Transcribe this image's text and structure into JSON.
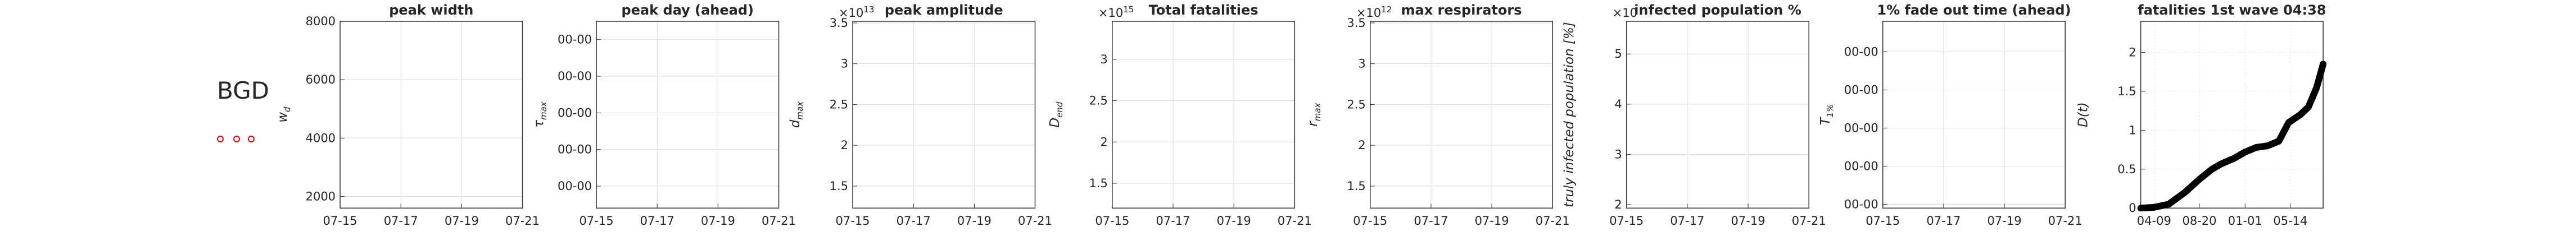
{
  "label": "BGD",
  "chart_data": [
    {
      "type": "line",
      "title": "peak width",
      "ylabel": "w",
      "ylabel_sub": "d",
      "series": [],
      "xlim": [
        0,
        6
      ],
      "xticks": [
        {
          "value": 0,
          "label": "07-15"
        },
        {
          "value": 2,
          "label": "07-17"
        },
        {
          "value": 4,
          "label": "07-19"
        },
        {
          "value": 6,
          "label": "07-21"
        }
      ],
      "ylim": [
        1600,
        8000
      ],
      "yticks": [
        2000,
        4000,
        6000,
        8000
      ],
      "grid": true
    },
    {
      "type": "line",
      "title": "peak day (ahead)",
      "ylabel": "τ",
      "ylabel_sub": "max",
      "series": [],
      "xlim": [
        0,
        6
      ],
      "xticks": [
        {
          "value": 0,
          "label": "07-15"
        },
        {
          "value": 2,
          "label": "07-17"
        },
        {
          "value": 4,
          "label": "07-19"
        },
        {
          "value": 6,
          "label": "07-21"
        }
      ],
      "ylim": [
        -0.6,
        4.5
      ],
      "yticks": [
        {
          "value": 0,
          "label": "00-00"
        },
        {
          "value": 1,
          "label": "00-00"
        },
        {
          "value": 2,
          "label": "00-00"
        },
        {
          "value": 3,
          "label": "00-00"
        },
        {
          "value": 4,
          "label": "00-00"
        }
      ],
      "grid": true
    },
    {
      "type": "line",
      "title": "peak amplitude",
      "ylabel": "d",
      "ylabel_sub": "max",
      "offset": "×10",
      "offset_exp": "13",
      "series": [],
      "xlim": [
        0,
        6
      ],
      "xticks": [
        {
          "value": 0,
          "label": "07-15"
        },
        {
          "value": 2,
          "label": "07-17"
        },
        {
          "value": 4,
          "label": "07-19"
        },
        {
          "value": 6,
          "label": "07-21"
        }
      ],
      "ylim": [
        1.23,
        3.52
      ],
      "yticks": [
        1.5,
        2,
        2.5,
        3,
        3.5
      ],
      "grid": true
    },
    {
      "type": "line",
      "title": "Total fatalities",
      "ylabel": "D",
      "ylabel_sub": "end",
      "offset": "×10",
      "offset_exp": "15",
      "series": [],
      "xlim": [
        0,
        6
      ],
      "xticks": [
        {
          "value": 0,
          "label": "07-15"
        },
        {
          "value": 2,
          "label": "07-17"
        },
        {
          "value": 4,
          "label": "07-19"
        },
        {
          "value": 6,
          "label": "07-21"
        }
      ],
      "ylim": [
        1.2,
        3.46
      ],
      "yticks": [
        1.5,
        2,
        2.5,
        3
      ],
      "grid": true
    },
    {
      "type": "line",
      "title": "max respirators",
      "ylabel": "r",
      "ylabel_sub": "max",
      "offset": "×10",
      "offset_exp": "12",
      "series": [],
      "xlim": [
        0,
        6
      ],
      "xticks": [
        {
          "value": 0,
          "label": "07-15"
        },
        {
          "value": 2,
          "label": "07-17"
        },
        {
          "value": 4,
          "label": "07-19"
        },
        {
          "value": 6,
          "label": "07-21"
        }
      ],
      "ylim": [
        1.23,
        3.52
      ],
      "yticks": [
        1.5,
        2,
        2.5,
        3,
        3.5
      ],
      "grid": true
    },
    {
      "type": "line",
      "title": "infected population %",
      "ylabel": "truly infected population [%]",
      "offset": "×10",
      "series": [],
      "xlim": [
        0,
        6
      ],
      "xticks": [
        {
          "value": 0,
          "label": "07-15"
        },
        {
          "value": 2,
          "label": "07-17"
        },
        {
          "value": 4,
          "label": "07-19"
        },
        {
          "value": 6,
          "label": "07-21"
        }
      ],
      "ylim": [
        1.93,
        5.65
      ],
      "yticks": [
        2,
        3,
        4,
        5
      ],
      "grid": true
    },
    {
      "type": "line",
      "title": "1% fade out time (ahead)",
      "ylabel": "T",
      "ylabel_sub": "1%",
      "series": [],
      "xlim": [
        0,
        6
      ],
      "xticks": [
        {
          "value": 0,
          "label": "07-15"
        },
        {
          "value": 2,
          "label": "07-17"
        },
        {
          "value": 4,
          "label": "07-19"
        },
        {
          "value": 6,
          "label": "07-21"
        }
      ],
      "ylim": [
        -0.1,
        4.8
      ],
      "yticks": [
        {
          "value": 0,
          "label": "00-00"
        },
        {
          "value": 1,
          "label": "00-00"
        },
        {
          "value": 2,
          "label": "00-00"
        },
        {
          "value": 3,
          "label": "00-00"
        },
        {
          "value": 4,
          "label": "00-00"
        }
      ],
      "grid": true
    },
    {
      "type": "line",
      "title": "fatalities 1st wave 04:38",
      "ylabel": "D(t)",
      "x": [
        -39,
        0,
        43,
        90,
        133,
        170,
        198,
        235,
        267,
        300,
        333,
        366,
        395,
        429,
        453,
        477,
        496
      ],
      "series": [
        {
          "color": "#000000",
          "values": [
            0,
            0.01,
            0.05,
            0.2,
            0.37,
            0.5,
            0.57,
            0.64,
            0.72,
            0.78,
            0.8,
            0.86,
            1.1,
            1.2,
            1.3,
            1.55,
            1.85
          ]
        }
      ],
      "xlim": [
        -39,
        496
      ],
      "xticks": [
        {
          "value": 0,
          "label": "04-09"
        },
        {
          "value": 133,
          "label": "08-20"
        },
        {
          "value": 267,
          "label": "01-01"
        },
        {
          "value": 400,
          "label": "05-14"
        }
      ],
      "ylim": [
        0,
        2.4
      ],
      "yticks": [
        0,
        0.5,
        1,
        1.5,
        2
      ],
      "grid": true,
      "grid_style": "dotted"
    }
  ]
}
